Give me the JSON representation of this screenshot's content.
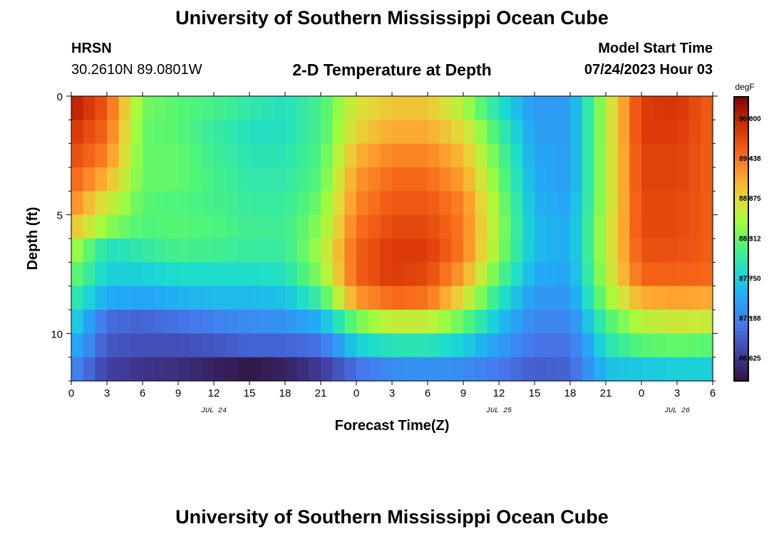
{
  "page": {
    "title_top": "University of Southern Mississippi Ocean Cube",
    "title_bottom": "University of Southern Mississippi Ocean Cube",
    "station": "HRSN",
    "coords": "30.2610N  89.0801W",
    "plot_title": "2-D Temperature at Depth",
    "model_start_label": "Model Start Time",
    "model_start_value": "07/24/2023 Hour 03"
  },
  "chart_data": {
    "type": "heatmap",
    "title": "2-D Temperature at Depth",
    "xlabel": "Forecast Time(Z)",
    "ylabel": "Depth (ft)",
    "x_range_hours": [
      0,
      54
    ],
    "x_ticks": [
      {
        "hour": 0,
        "label": "0"
      },
      {
        "hour": 3,
        "label": "3"
      },
      {
        "hour": 6,
        "label": "6"
      },
      {
        "hour": 9,
        "label": "9"
      },
      {
        "hour": 12,
        "label": "12"
      },
      {
        "hour": 15,
        "label": "15"
      },
      {
        "hour": 18,
        "label": "18"
      },
      {
        "hour": 21,
        "label": "21"
      },
      {
        "hour": 24,
        "label": "0"
      },
      {
        "hour": 27,
        "label": "3"
      },
      {
        "hour": 30,
        "label": "6"
      },
      {
        "hour": 33,
        "label": "9"
      },
      {
        "hour": 36,
        "label": "12"
      },
      {
        "hour": 39,
        "label": "15"
      },
      {
        "hour": 42,
        "label": "18"
      },
      {
        "hour": 45,
        "label": "21"
      },
      {
        "hour": 48,
        "label": "0"
      },
      {
        "hour": 51,
        "label": "3"
      },
      {
        "hour": 54,
        "label": "6"
      }
    ],
    "date_labels": [
      {
        "hour": 12,
        "label": "JUL 24"
      },
      {
        "hour": 36,
        "label": "JUL 25"
      },
      {
        "hour": 51,
        "label": "JUL 26"
      }
    ],
    "y_range_ft": [
      0,
      12
    ],
    "y_inverted": true,
    "y_ticks": [
      {
        "depth": 0,
        "label": "0"
      },
      {
        "depth": 5,
        "label": "5"
      },
      {
        "depth": 10,
        "label": "10"
      }
    ],
    "depth_levels_ft": [
      0.5,
      1.5,
      2.5,
      3.5,
      4.5,
      5.5,
      6.5,
      7.5,
      8.5,
      9.5,
      10.5,
      11.5
    ],
    "time_columns_hours": [
      0,
      3,
      6,
      9,
      12,
      15,
      18,
      21,
      24,
      27,
      30,
      33,
      36,
      39,
      42,
      45,
      48,
      51,
      54
    ],
    "values_degF": [
      [
        90.05,
        89.6,
        88.35,
        88.25,
        88.15,
        88.0,
        87.9,
        88.15,
        88.8,
        89.0,
        89.0,
        88.6,
        87.9,
        87.35,
        87.4,
        88.6,
        89.8,
        89.85,
        89.55
      ],
      [
        89.85,
        89.5,
        88.3,
        88.25,
        88.05,
        87.9,
        87.9,
        88.15,
        88.9,
        89.15,
        89.15,
        88.85,
        88.1,
        87.4,
        87.4,
        88.6,
        89.8,
        89.8,
        89.55
      ],
      [
        89.7,
        89.35,
        88.3,
        88.3,
        88.1,
        87.95,
        87.95,
        88.2,
        89.1,
        89.35,
        89.35,
        89.05,
        88.25,
        87.45,
        87.4,
        88.6,
        89.75,
        89.75,
        89.55
      ],
      [
        89.55,
        89.1,
        88.3,
        88.3,
        88.15,
        88.0,
        88.0,
        88.25,
        89.25,
        89.5,
        89.5,
        89.2,
        88.35,
        87.5,
        87.4,
        88.6,
        89.75,
        89.75,
        89.55
      ],
      [
        89.35,
        88.75,
        88.25,
        88.2,
        88.15,
        88.05,
        88.05,
        88.35,
        89.35,
        89.6,
        89.6,
        89.35,
        88.45,
        87.55,
        87.45,
        88.6,
        89.7,
        89.7,
        89.55
      ],
      [
        89.05,
        88.45,
        88.2,
        88.25,
        88.2,
        88.1,
        88.1,
        88.45,
        89.45,
        89.7,
        89.7,
        89.4,
        88.5,
        87.6,
        87.5,
        88.65,
        89.7,
        89.7,
        89.55
      ],
      [
        88.6,
        87.9,
        88.0,
        88.15,
        88.1,
        88.05,
        88.05,
        88.55,
        89.55,
        89.8,
        89.8,
        89.4,
        88.45,
        87.6,
        87.5,
        88.65,
        89.65,
        89.65,
        89.55
      ],
      [
        88.35,
        87.75,
        87.75,
        87.85,
        87.85,
        87.85,
        87.9,
        88.45,
        89.55,
        89.8,
        89.7,
        89.2,
        88.25,
        87.5,
        87.45,
        88.6,
        89.55,
        89.55,
        89.5
      ],
      [
        88.05,
        87.5,
        87.45,
        87.55,
        87.6,
        87.6,
        87.65,
        88.1,
        89.25,
        89.5,
        89.45,
        88.85,
        87.95,
        87.35,
        87.35,
        88.45,
        89.15,
        89.2,
        89.15
      ],
      [
        87.85,
        87.0,
        86.95,
        87.05,
        87.15,
        87.25,
        87.3,
        87.55,
        88.35,
        88.7,
        88.7,
        88.3,
        87.65,
        87.2,
        87.2,
        88.15,
        88.65,
        88.75,
        88.7
      ],
      [
        87.6,
        86.85,
        86.8,
        86.8,
        86.85,
        86.95,
        86.95,
        87.05,
        87.75,
        87.95,
        87.95,
        87.75,
        87.4,
        87.05,
        87.05,
        87.9,
        88.25,
        88.3,
        88.25
      ],
      [
        87.25,
        86.7,
        86.6,
        86.55,
        86.45,
        86.35,
        86.45,
        86.65,
        87.05,
        87.25,
        87.3,
        87.25,
        87.1,
        86.9,
        86.95,
        87.65,
        87.7,
        87.75,
        87.75
      ]
    ],
    "colorbar": {
      "unit": "degF",
      "min": 86.3,
      "max": 90.3,
      "ticks": [
        90.0,
        89.438,
        88.875,
        88.312,
        87.75,
        87.188,
        86.625
      ],
      "tick_labels": [
        "90.000",
        "89.438",
        "88.875",
        "88.312",
        "87.750",
        "87.188",
        "86.625"
      ]
    }
  }
}
